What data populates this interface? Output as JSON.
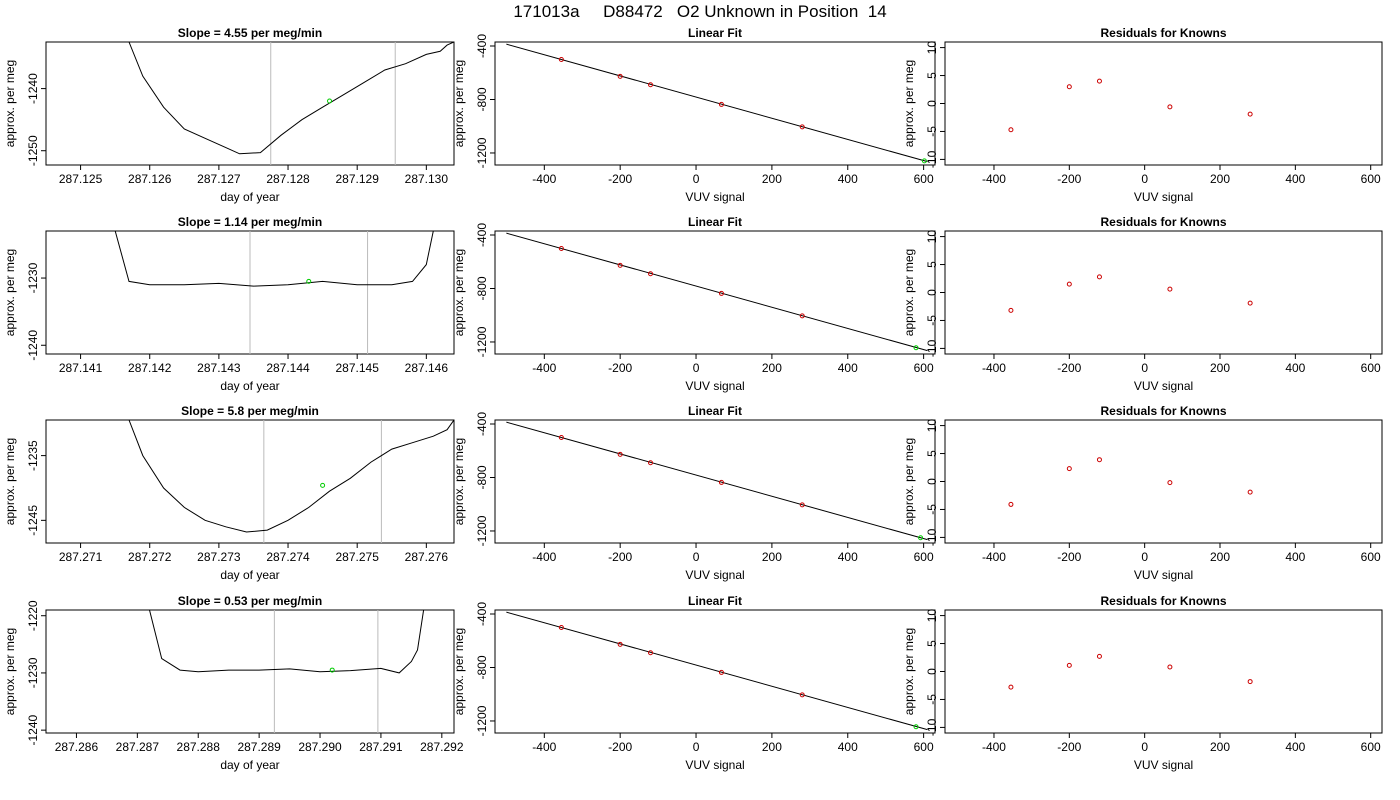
{
  "page_title": "171013a     D88472   O2 Unknown in Position  14",
  "style": {
    "line_color": "#000000",
    "marker_unknown": "#00cc00",
    "marker_known": "#cc0000",
    "vline_color": "#bbbbbb"
  },
  "chart_data": [
    {
      "type": "line",
      "title": "Slope =  4.55  per meg/min",
      "xlabel": "day of year",
      "ylabel": "approx. per meg",
      "xlim": [
        287.1245,
        287.1304
      ],
      "xticks": [
        "287.125",
        "287.126",
        "287.127",
        "287.128",
        "287.129",
        "287.130"
      ],
      "xtick_values": [
        287.125,
        287.126,
        287.127,
        287.128,
        287.129,
        287.13
      ],
      "ylim": [
        -1252.3,
        -1232.5
      ],
      "yticks": [
        "-1240",
        "-1250"
      ],
      "ytick_values": [
        -1240,
        -1250
      ],
      "vlines": [
        287.12775,
        287.12955
      ],
      "marker": {
        "x": 287.1286,
        "y": -1242.0
      },
      "series": [
        {
          "x": [
            287.1257,
            287.1259,
            287.1262,
            287.1265,
            287.1268,
            287.1271,
            287.1273,
            287.1276,
            287.1279,
            287.1282,
            287.1285,
            287.1288,
            287.1291,
            287.1294,
            287.1297,
            287.13,
            287.1302,
            287.1303,
            287.1304
          ],
          "y": [
            -1232.5,
            -1238,
            -1243,
            -1246.5,
            -1248,
            -1249.5,
            -1250.5,
            -1250.3,
            -1247.5,
            -1245,
            -1243,
            -1241,
            -1239,
            -1237,
            -1236,
            -1234.5,
            -1234,
            -1233,
            -1232.5
          ]
        }
      ]
    },
    {
      "type": "line",
      "title": "Linear Fit",
      "xlabel": "VUV signal",
      "ylabel": "approx. per meg",
      "xlim": [
        -530,
        630
      ],
      "xticks": [
        "-400",
        "-200",
        "0",
        "200",
        "400",
        "600"
      ],
      "xtick_values": [
        -400,
        -200,
        0,
        200,
        400,
        600
      ],
      "ylim": [
        -1290,
        -370
      ],
      "yticks": [
        "-400",
        "-800",
        "-1200"
      ],
      "ytick_values": [
        -400,
        -800,
        -1200
      ],
      "fit_line": {
        "x": [
          -500,
          610
        ],
        "y": [
          -386,
          -1265
        ]
      },
      "known_points": {
        "x": [
          -355,
          -200,
          -120,
          67,
          280
        ],
        "y": [
          -501,
          -627,
          -690,
          -837,
          -1005
        ]
      },
      "unknown_point": {
        "x": 602,
        "y": -1259
      }
    },
    {
      "type": "scatter",
      "title": "Residuals for Knowns",
      "xlabel": "VUV signal",
      "ylabel": "approx. per meg",
      "xlim": [
        -530,
        630
      ],
      "xticks": [
        "-400",
        "-200",
        "0",
        "200",
        "400",
        "600"
      ],
      "xtick_values": [
        -400,
        -200,
        0,
        200,
        400,
        600
      ],
      "ylim": [
        -11,
        11
      ],
      "yticks": [
        "-10",
        "-5",
        "0",
        "5",
        "10"
      ],
      "ytick_values": [
        -10,
        -5,
        0,
        5,
        10
      ],
      "points": {
        "x": [
          -355,
          -200,
          -120,
          67,
          280
        ],
        "y": [
          -4.7,
          3.0,
          4.0,
          -0.6,
          -1.9
        ]
      }
    },
    {
      "type": "line",
      "title": "Slope =  1.14  per meg/min",
      "xlabel": "day of year",
      "ylabel": "approx. per meg",
      "xlim": [
        287.1405,
        287.1464
      ],
      "xticks": [
        "287.141",
        "287.142",
        "287.143",
        "287.144",
        "287.145",
        "287.146"
      ],
      "xtick_values": [
        287.141,
        287.142,
        287.143,
        287.144,
        287.145,
        287.146
      ],
      "ylim": [
        -1241.3,
        -1223
      ],
      "yticks": [
        "-1230",
        "-1240"
      ],
      "ytick_values": [
        -1230,
        -1240
      ],
      "vlines": [
        287.14345,
        287.14515
      ],
      "marker": {
        "x": 287.1443,
        "y": -1230.5
      },
      "series": [
        {
          "x": [
            287.1415,
            287.1417,
            287.142,
            287.1425,
            287.143,
            287.1435,
            287.144,
            287.1445,
            287.145,
            287.1455,
            287.1458,
            287.146,
            287.1461
          ],
          "y": [
            -1223,
            -1230.5,
            -1231,
            -1231,
            -1230.8,
            -1231.2,
            -1231,
            -1230.5,
            -1231,
            -1231,
            -1230.5,
            -1228,
            -1223
          ]
        }
      ]
    },
    {
      "type": "line",
      "title": "Linear Fit",
      "xlabel": "VUV signal",
      "ylabel": "approx. per meg",
      "xlim": [
        -530,
        630
      ],
      "xticks": [
        "-400",
        "-200",
        "0",
        "200",
        "400",
        "600"
      ],
      "xtick_values": [
        -400,
        -200,
        0,
        200,
        400,
        600
      ],
      "ylim": [
        -1290,
        -370
      ],
      "yticks": [
        "-400",
        "-800",
        "-1200"
      ],
      "ytick_values": [
        -400,
        -800,
        -1200
      ],
      "fit_line": {
        "x": [
          -500,
          610
        ],
        "y": [
          -386,
          -1265
        ]
      },
      "known_points": {
        "x": [
          -355,
          -200,
          -120,
          67,
          280
        ],
        "y": [
          -501,
          -627,
          -690,
          -837,
          -1005
        ]
      },
      "unknown_point": {
        "x": 580,
        "y": -1243
      }
    },
    {
      "type": "scatter",
      "title": "Residuals for Knowns",
      "xlabel": "VUV signal",
      "ylabel": "approx. per meg",
      "xlim": [
        -530,
        630
      ],
      "xticks": [
        "-400",
        "-200",
        "0",
        "200",
        "400",
        "600"
      ],
      "xtick_values": [
        -400,
        -200,
        0,
        200,
        400,
        600
      ],
      "ylim": [
        -11,
        11
      ],
      "yticks": [
        "-10",
        "-5",
        "0",
        "5",
        "10"
      ],
      "ytick_values": [
        -10,
        -5,
        0,
        5,
        10
      ],
      "points": {
        "x": [
          -355,
          -200,
          -120,
          67,
          280
        ],
        "y": [
          -3.2,
          1.5,
          2.8,
          0.6,
          -1.9
        ]
      }
    },
    {
      "type": "line",
      "title": "Slope =  5.8  per meg/min",
      "xlabel": "day of year",
      "ylabel": "approx. per meg",
      "xlim": [
        287.2705,
        287.2764
      ],
      "xticks": [
        "287.271",
        "287.272",
        "287.273",
        "287.274",
        "287.275",
        "287.276"
      ],
      "xtick_values": [
        287.271,
        287.272,
        287.273,
        287.274,
        287.275,
        287.276
      ],
      "ylim": [
        -1248.5,
        -1229.5
      ],
      "yticks": [
        "-1235",
        "-1245"
      ],
      "ytick_values": [
        -1235,
        -1245
      ],
      "vlines": [
        287.27365,
        287.27535
      ],
      "marker": {
        "x": 287.2745,
        "y": -1239.6
      },
      "series": [
        {
          "x": [
            287.2717,
            287.2719,
            287.2722,
            287.2725,
            287.2728,
            287.2731,
            287.2734,
            287.2737,
            287.274,
            287.2743,
            287.2746,
            287.2749,
            287.2752,
            287.2755,
            287.2758,
            287.2761,
            287.2763,
            287.2764
          ],
          "y": [
            -1229.5,
            -1235,
            -1240,
            -1243,
            -1245,
            -1246,
            -1246.8,
            -1246.5,
            -1245,
            -1243,
            -1240.5,
            -1238.5,
            -1236,
            -1234,
            -1233,
            -1232,
            -1231,
            -1229.5
          ]
        }
      ]
    },
    {
      "type": "line",
      "title": "Linear Fit",
      "xlabel": "VUV signal",
      "ylabel": "approx. per meg",
      "xlim": [
        -530,
        630
      ],
      "xticks": [
        "-400",
        "-200",
        "0",
        "200",
        "400",
        "600"
      ],
      "xtick_values": [
        -400,
        -200,
        0,
        200,
        400,
        600
      ],
      "ylim": [
        -1290,
        -370
      ],
      "yticks": [
        "-400",
        "-800",
        "-1200"
      ],
      "ytick_values": [
        -400,
        -800,
        -1200
      ],
      "fit_line": {
        "x": [
          -500,
          610
        ],
        "y": [
          -386,
          -1265
        ]
      },
      "known_points": {
        "x": [
          -355,
          -200,
          -120,
          67,
          280
        ],
        "y": [
          -501,
          -627,
          -690,
          -837,
          -1005
        ]
      },
      "unknown_point": {
        "x": 592,
        "y": -1251
      }
    },
    {
      "type": "scatter",
      "title": "Residuals for Knowns",
      "xlabel": "VUV signal",
      "ylabel": "approx. per meg",
      "xlim": [
        -530,
        630
      ],
      "xticks": [
        "-400",
        "-200",
        "0",
        "200",
        "400",
        "600"
      ],
      "xtick_values": [
        -400,
        -200,
        0,
        200,
        400,
        600
      ],
      "ylim": [
        -11,
        11
      ],
      "yticks": [
        "-10",
        "-5",
        "0",
        "5",
        "10"
      ],
      "ytick_values": [
        -10,
        -5,
        0,
        5,
        10
      ],
      "points": {
        "x": [
          -355,
          -200,
          -120,
          67,
          280
        ],
        "y": [
          -4.1,
          2.3,
          3.9,
          -0.2,
          -1.9
        ]
      }
    },
    {
      "type": "line",
      "title": "Slope =  0.53  per meg/min",
      "xlabel": "day of year",
      "ylabel": "approx. per meg",
      "xlim": [
        287.2855,
        287.2922
      ],
      "xticks": [
        "287.286",
        "287.287",
        "287.288",
        "287.289",
        "287.290",
        "287.291",
        "287.292"
      ],
      "xtick_values": [
        287.286,
        287.287,
        287.288,
        287.289,
        287.29,
        287.291,
        287.292
      ],
      "ylim": [
        -1240.5,
        -1219
      ],
      "yticks": [
        "-1220",
        "-1230",
        "-1240"
      ],
      "ytick_values": [
        -1220,
        -1230,
        -1240
      ],
      "vlines": [
        287.28925,
        287.29095
      ],
      "marker": {
        "x": 287.2902,
        "y": -1229.5
      },
      "series": [
        {
          "x": [
            287.2872,
            287.2874,
            287.2877,
            287.288,
            287.2885,
            287.289,
            287.2895,
            287.29,
            287.2905,
            287.291,
            287.2913,
            287.2915,
            287.2916,
            287.2917
          ],
          "y": [
            -1219,
            -1227.5,
            -1229.5,
            -1229.8,
            -1229.5,
            -1229.5,
            -1229.3,
            -1229.8,
            -1229.6,
            -1229.2,
            -1230,
            -1228,
            -1226,
            -1219
          ]
        }
      ]
    },
    {
      "type": "line",
      "title": "Linear Fit",
      "xlabel": "VUV signal",
      "ylabel": "approx. per meg",
      "xlim": [
        -530,
        630
      ],
      "xticks": [
        "-400",
        "-200",
        "0",
        "200",
        "400",
        "600"
      ],
      "xtick_values": [
        -400,
        -200,
        0,
        200,
        400,
        600
      ],
      "ylim": [
        -1290,
        -370
      ],
      "yticks": [
        "-400",
        "-800",
        "-1200"
      ],
      "ytick_values": [
        -400,
        -800,
        -1200
      ],
      "fit_line": {
        "x": [
          -500,
          610
        ],
        "y": [
          -386,
          -1265
        ]
      },
      "known_points": {
        "x": [
          -355,
          -200,
          -120,
          67,
          280
        ],
        "y": [
          -501,
          -627,
          -690,
          -837,
          -1005
        ]
      },
      "unknown_point": {
        "x": 580,
        "y": -1243
      }
    },
    {
      "type": "scatter",
      "title": "Residuals for Knowns",
      "xlabel": "VUV signal",
      "ylabel": "approx. per meg",
      "xlim": [
        -530,
        630
      ],
      "xticks": [
        "-400",
        "-200",
        "0",
        "200",
        "400",
        "600"
      ],
      "xtick_values": [
        -400,
        -200,
        0,
        200,
        400,
        600
      ],
      "ylim": [
        -11,
        11
      ],
      "yticks": [
        "-10",
        "-5",
        "0",
        "5",
        "10"
      ],
      "ytick_values": [
        -10,
        -5,
        0,
        5,
        10
      ],
      "points": {
        "x": [
          -355,
          -200,
          -120,
          67,
          280
        ],
        "y": [
          -2.8,
          1.1,
          2.7,
          0.8,
          -1.8
        ]
      }
    }
  ]
}
